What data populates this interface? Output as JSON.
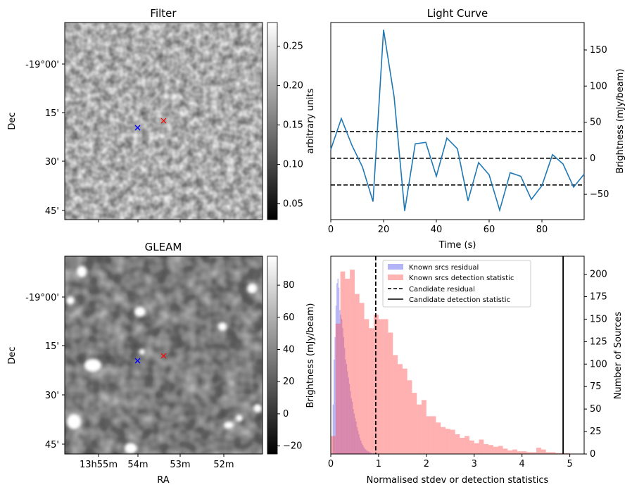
{
  "chart_data": [
    {
      "type": "heatmap",
      "title": "Filter",
      "xlabel": "",
      "ylabel": "Dec",
      "yticks": [
        "-19°00'",
        "15'",
        "30'",
        "45'"
      ],
      "colorbar": {
        "label": "arbitrary units",
        "range": [
          0.03,
          0.28
        ],
        "ticks": [
          "0.05",
          "0.10",
          "0.15",
          "0.20",
          "0.25"
        ],
        "tick_values": [
          0.05,
          0.1,
          0.15,
          0.2,
          0.25
        ]
      },
      "markers": [
        {
          "name": "candidate-marker",
          "symbol": "x",
          "color": "#ff0000"
        },
        {
          "name": "source-marker",
          "symbol": "x",
          "color": "#0000ff"
        }
      ]
    },
    {
      "type": "line",
      "title": "Light Curve",
      "xlabel": "Time (s)",
      "ylabel": "Brightness (mJy/beam)",
      "xlim": [
        0,
        96
      ],
      "ylim": [
        -85,
        188
      ],
      "xticks": [
        0,
        20,
        40,
        60,
        80
      ],
      "yticks": [
        -50,
        0,
        50,
        100,
        150
      ],
      "series": [
        {
          "name": "light-curve",
          "color": "#1f77b4",
          "x": [
            0,
            4,
            8,
            12,
            16,
            20,
            24,
            28,
            32,
            36,
            40,
            44,
            48,
            52,
            56,
            60,
            64,
            68,
            72,
            76,
            80,
            84,
            88,
            92,
            96
          ],
          "y": [
            12,
            55,
            18,
            -12,
            -60,
            178,
            85,
            -73,
            20,
            22,
            -25,
            28,
            13,
            -59,
            -6,
            -23,
            -72,
            -20,
            -25,
            -57,
            -38,
            5,
            -8,
            -40,
            -22
          ]
        }
      ],
      "hlines": [
        {
          "y": 37,
          "style": "dashed",
          "color": "#000000"
        },
        {
          "y": 0,
          "style": "dashed",
          "color": "#000000"
        },
        {
          "y": -37,
          "style": "dashed",
          "color": "#000000"
        }
      ]
    },
    {
      "type": "heatmap",
      "title": "GLEAM",
      "xlabel": "RA",
      "ylabel": "Dec",
      "xticks": [
        "13h55m",
        "54m",
        "53m",
        "52m"
      ],
      "yticks": [
        "-19°00'",
        "15'",
        "30'",
        "45'"
      ],
      "colorbar": {
        "label": "Brightness (mJy/beam)",
        "range": [
          -25,
          98
        ],
        "ticks": [
          "−20",
          "0",
          "20",
          "40",
          "60",
          "80"
        ],
        "tick_values": [
          -20,
          0,
          20,
          40,
          60,
          80
        ]
      },
      "markers": [
        {
          "name": "candidate-marker",
          "symbol": "x",
          "color": "#ff0000"
        },
        {
          "name": "source-marker",
          "symbol": "x",
          "color": "#0000ff"
        }
      ]
    },
    {
      "type": "bar",
      "title": "",
      "xlabel": "Normalised stdev or detection statistics",
      "ylabel": "Number of Sources",
      "xlim": [
        0,
        5.3
      ],
      "ylim": [
        0,
        220
      ],
      "xticks": [
        0,
        1,
        2,
        3,
        4,
        5
      ],
      "yticks": [
        0,
        25,
        50,
        75,
        100,
        125,
        150,
        175,
        200
      ],
      "bin_width": 0.1,
      "series": [
        {
          "name": "Known srcs residual",
          "color": "#7070f0",
          "bin_width": 0.02,
          "x_start": 0.04,
          "values": [
            55,
            105,
            130,
            165,
            190,
            195,
            185,
            160,
            155,
            150,
            140,
            130,
            118,
            105,
            100,
            92,
            85,
            78,
            70,
            62,
            58,
            50,
            45,
            40,
            36,
            30,
            26,
            22,
            18,
            15,
            12,
            10,
            8,
            6,
            5,
            4,
            3,
            3,
            2,
            2,
            1,
            1,
            1,
            1
          ]
        },
        {
          "name": "Known srcs detection statistic",
          "color": "#ff6a6a",
          "bin_width": 0.1,
          "x_start": 0.0,
          "values": [
            20,
            145,
            203,
            195,
            205,
            178,
            168,
            150,
            140,
            155,
            150,
            150,
            135,
            110,
            100,
            95,
            82,
            68,
            55,
            60,
            42,
            42,
            35,
            30,
            28,
            27,
            22,
            18,
            20,
            15,
            12,
            16,
            11,
            10,
            8,
            9,
            6,
            4,
            5,
            3,
            3,
            2,
            2,
            7,
            5,
            2,
            2,
            1,
            1,
            1
          ]
        }
      ],
      "vlines": [
        {
          "name": "Candidate residual",
          "x": 0.94,
          "style": "dashed",
          "color": "#000000"
        },
        {
          "name": "Candidate detection statistic",
          "x": 4.86,
          "style": "solid",
          "color": "#000000"
        }
      ],
      "legend": [
        "Known srcs residual",
        "Known srcs detection statistic",
        "Candidate residual",
        "Candidate detection statistic"
      ],
      "legend_position": "top"
    }
  ]
}
